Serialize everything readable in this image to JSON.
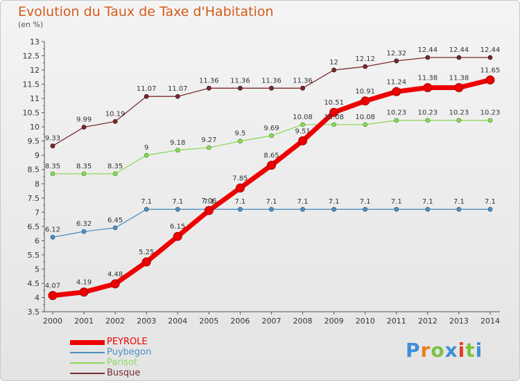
{
  "title": "Evolution du Taux de Taxe d'Habitation",
  "subtitle": "(en %)",
  "logo": {
    "letters": [
      "P",
      "r",
      "o",
      "x",
      "i",
      "t",
      "i"
    ],
    "colors": [
      "#3d8fd6",
      "#e8801c",
      "#7cc241",
      "#3d8fd6",
      "#e83a22",
      "#7cc241",
      "#3d8fd6"
    ]
  },
  "chart_data": {
    "type": "line",
    "x": [
      2000,
      2001,
      2002,
      2003,
      2004,
      2005,
      2006,
      2007,
      2008,
      2009,
      2010,
      2011,
      2012,
      2013,
      2014
    ],
    "ylim": [
      3.5,
      13
    ],
    "y_ticks": [
      "3.5",
      "4",
      "4.5",
      "5",
      "5.5",
      "6",
      "6.5",
      "7",
      "7.5",
      "8",
      "8.5",
      "9",
      "9.5",
      "10",
      "10.5",
      "11",
      "11.5",
      "12",
      "12.5",
      "13"
    ],
    "grid": false,
    "legend_position": "bottom-left",
    "series": [
      {
        "name": "PEYROLE",
        "color": "#ee0000",
        "values": [
          4.07,
          4.19,
          4.48,
          5.25,
          6.15,
          7.06,
          7.85,
          8.65,
          9.51,
          10.51,
          10.91,
          11.24,
          11.38,
          11.38,
          11.65
        ],
        "labels": [
          "4.07",
          "4.19",
          "4.48",
          "5.25",
          "6.15",
          "7.06",
          "7.85",
          "8.65",
          "9.51",
          "10.51",
          "10.91",
          "11.24",
          "11.38",
          "11.38",
          "11.65"
        ]
      },
      {
        "name": "Puybegon",
        "color": "#4f8fc0",
        "values": [
          6.12,
          6.32,
          6.45,
          7.1,
          7.1,
          7.1,
          7.1,
          7.1,
          7.1,
          7.1,
          7.1,
          7.1,
          7.1,
          7.1,
          7.1
        ],
        "labels": [
          "6.12",
          "6.32",
          "6.45",
          "7.1",
          "7.1",
          "7.1",
          "7.1",
          "7.1",
          "7.1",
          "7.1",
          "7.1",
          "7.1",
          "7.1",
          "7.1",
          "7.1"
        ]
      },
      {
        "name": "Parisot",
        "color": "#8ed85c",
        "values": [
          8.35,
          8.35,
          8.35,
          9,
          9.18,
          9.27,
          9.5,
          9.69,
          10.08,
          10.08,
          10.08,
          10.23,
          10.23,
          10.23,
          10.23
        ],
        "labels": [
          "8.35",
          "8.35",
          "8.35",
          "9",
          "9.18",
          "9.27",
          "9.5",
          "9.69",
          "10.08",
          "10.08",
          "10.08",
          "10.23",
          "10.23",
          "10.23",
          "10.23"
        ]
      },
      {
        "name": "Busque",
        "color": "#7a2a2e",
        "values": [
          9.33,
          9.99,
          10.19,
          11.07,
          11.07,
          11.36,
          11.36,
          11.36,
          11.36,
          12,
          12.12,
          12.32,
          12.44,
          12.44,
          12.44
        ],
        "labels": [
          "9.33",
          "9.99",
          "10.19",
          "11.07",
          "11.07",
          "11.36",
          "11.36",
          "11.36",
          "11.36",
          "12",
          "12.12",
          "12.32",
          "12.44",
          "12.44",
          "12.44"
        ]
      }
    ]
  }
}
